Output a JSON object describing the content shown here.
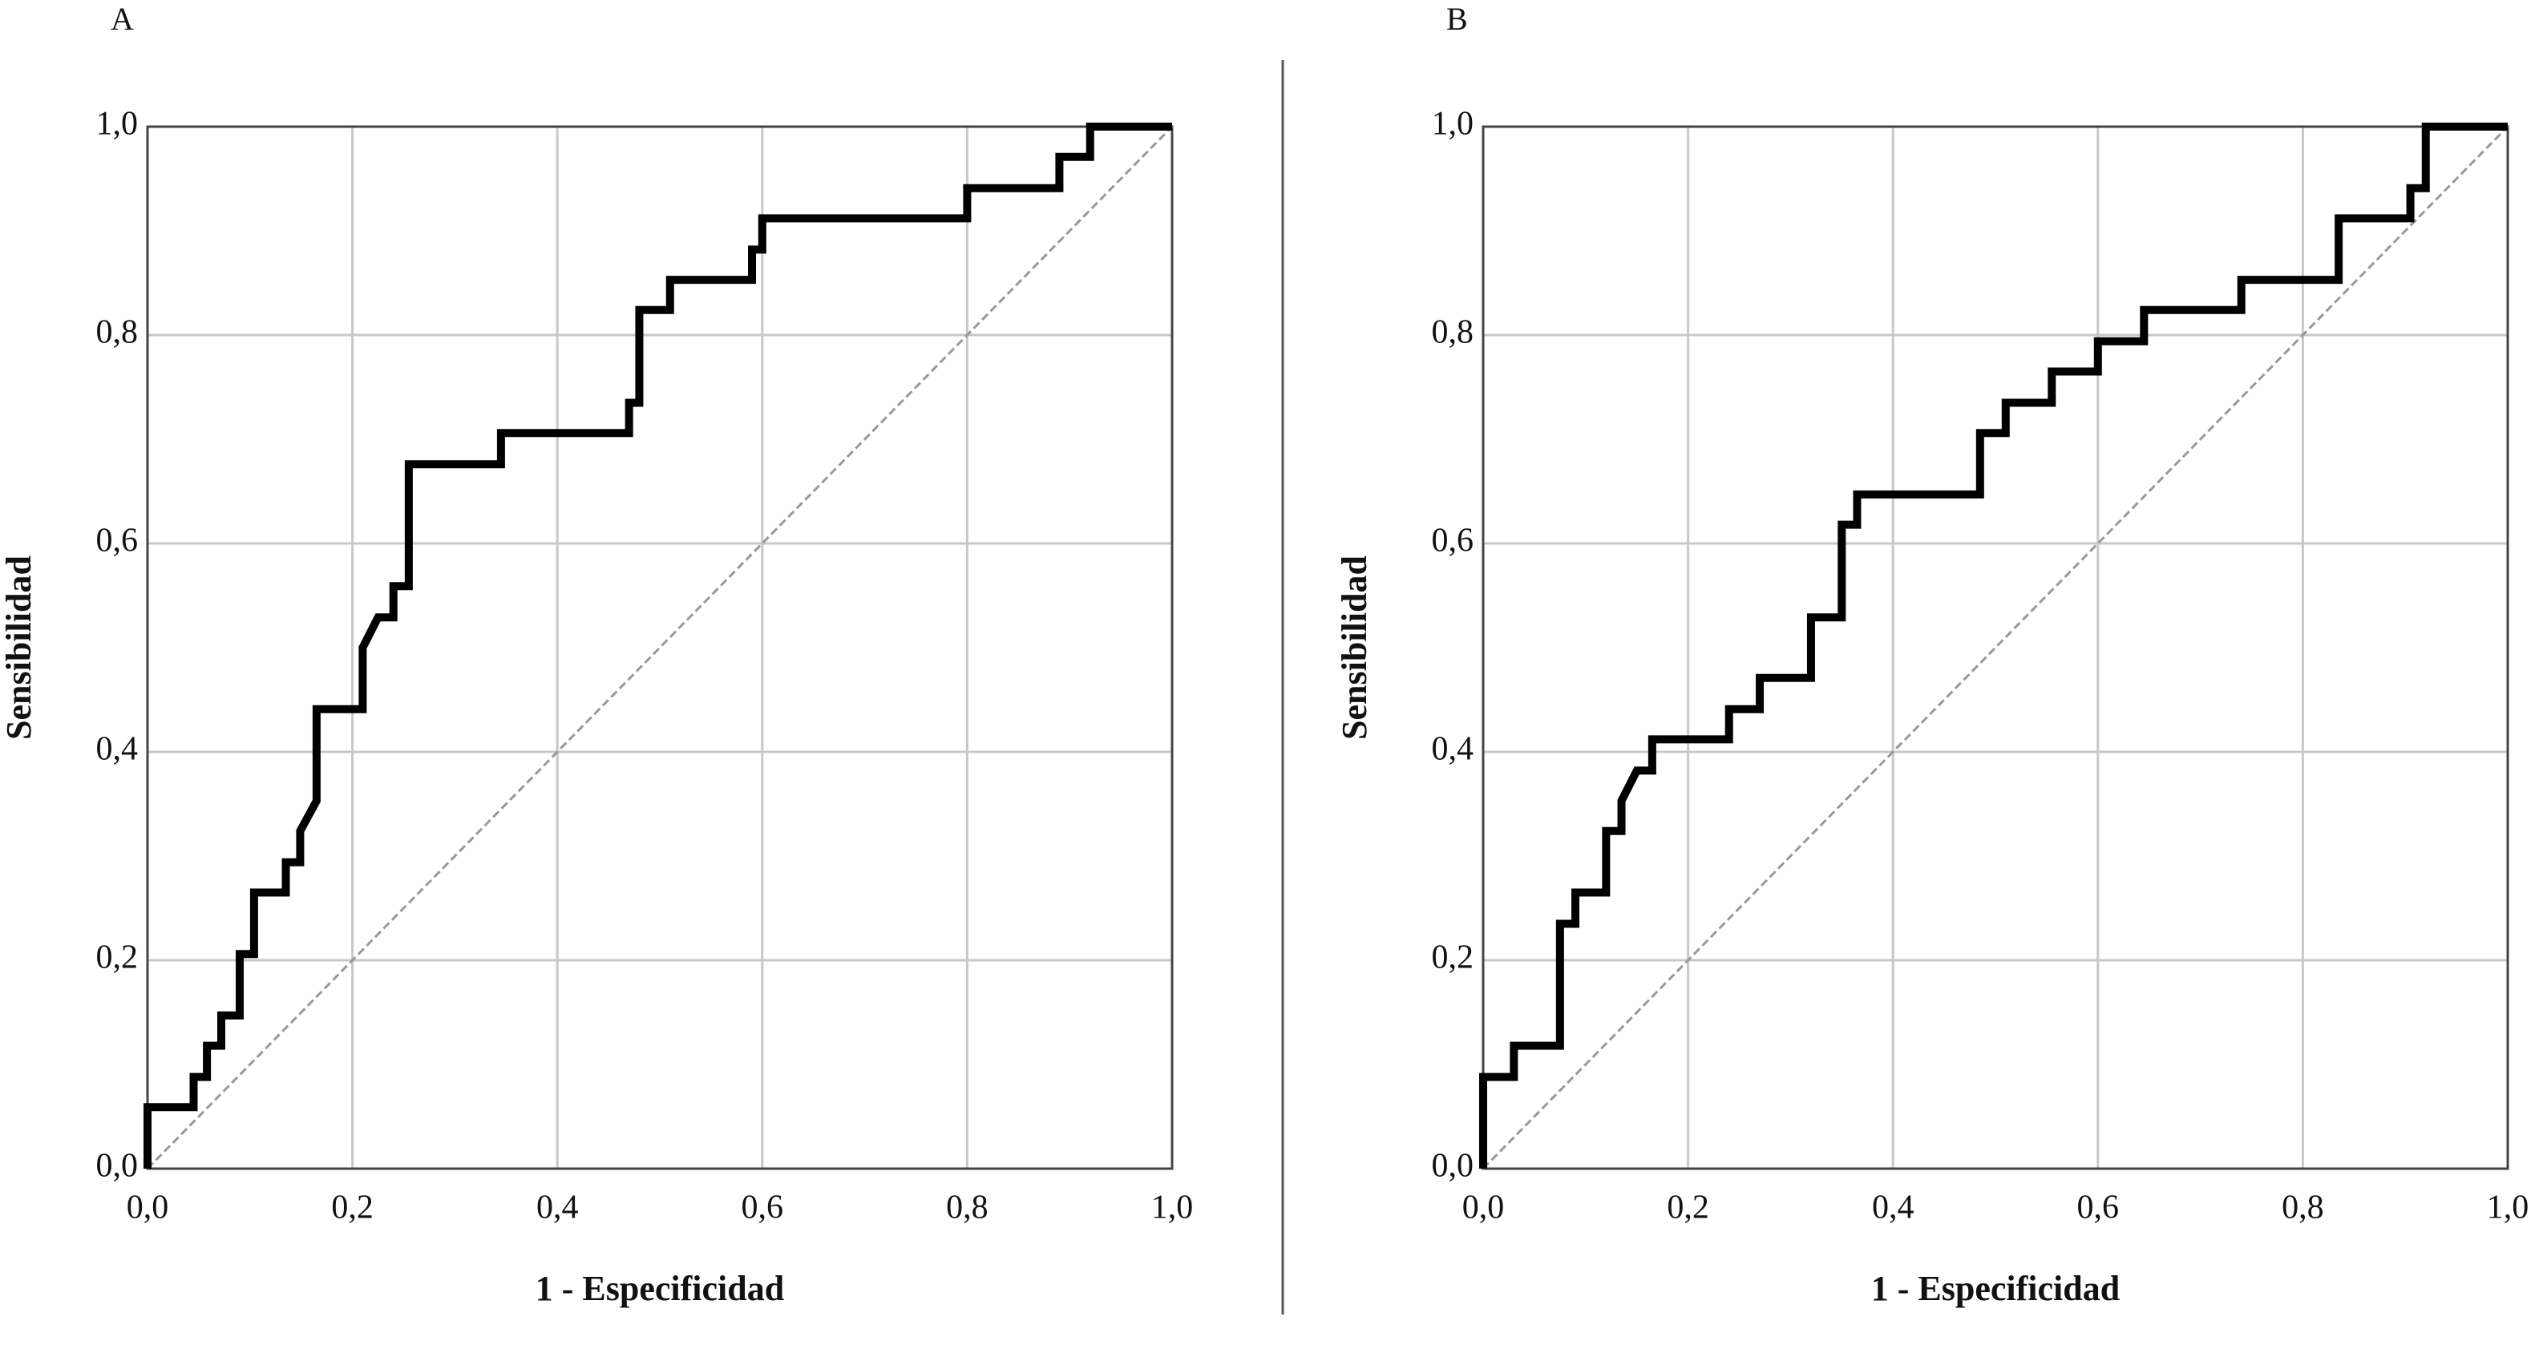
{
  "chart_data": [
    {
      "type": "line",
      "title": "A",
      "x_label": "1 - Especificidad",
      "y_label": "Sensibilidad",
      "xlim": [
        0,
        1
      ],
      "ylim": [
        0,
        1
      ],
      "grid": true,
      "color": "#000000",
      "xticks": [
        {
          "value": 0,
          "label": "0,0"
        },
        {
          "value": 0.2,
          "label": "0,2"
        },
        {
          "value": 0.4,
          "label": "0,4"
        },
        {
          "value": 0.6,
          "label": "0,6"
        },
        {
          "value": 0.8,
          "label": "0,8"
        },
        {
          "value": 1,
          "label": "1,0"
        }
      ],
      "yticks": [
        {
          "value": 0,
          "label": "0,0"
        },
        {
          "value": 0.2,
          "label": "0,2"
        },
        {
          "value": 0.4,
          "label": "0,4"
        },
        {
          "value": 0.6,
          "label": "0,6"
        },
        {
          "value": 0.8,
          "label": "0,8"
        },
        {
          "value": 1,
          "label": "1,0"
        }
      ],
      "x": [
        0,
        0,
        0.045,
        0.045,
        0.058,
        0.058,
        0.072,
        0.072,
        0.09,
        0.09,
        0.104,
        0.104,
        0.135,
        0.135,
        0.149,
        0.149,
        0.165,
        0.165,
        0.21,
        0.21,
        0.225,
        0.24,
        0.24,
        0.255,
        0.255,
        0.345,
        0.345,
        0.47,
        0.47,
        0.48,
        0.48,
        0.51,
        0.51,
        0.59,
        0.59,
        0.6,
        0.6,
        0.8,
        0.8,
        0.89,
        0.89,
        0.92,
        0.92,
        1
      ],
      "values": [
        0,
        0.059,
        0.059,
        0.088,
        0.088,
        0.118,
        0.118,
        0.147,
        0.147,
        0.206,
        0.206,
        0.265,
        0.265,
        0.294,
        0.294,
        0.324,
        0.353,
        0.441,
        0.441,
        0.5,
        0.529,
        0.529,
        0.559,
        0.559,
        0.676,
        0.676,
        0.706,
        0.706,
        0.735,
        0.735,
        0.824,
        0.824,
        0.853,
        0.853,
        0.882,
        0.882,
        0.912,
        0.912,
        0.941,
        0.941,
        0.971,
        0.971,
        1,
        1
      ]
    },
    {
      "type": "line",
      "title": "B",
      "x_label": "1 - Especificidad",
      "y_label": "Sensibilidad",
      "xlim": [
        0,
        1
      ],
      "ylim": [
        0,
        1
      ],
      "grid": true,
      "color": "#000000",
      "xticks": [
        {
          "value": 0,
          "label": "0,0"
        },
        {
          "value": 0.2,
          "label": "0,2"
        },
        {
          "value": 0.4,
          "label": "0,4"
        },
        {
          "value": 0.6,
          "label": "0,6"
        },
        {
          "value": 0.8,
          "label": "0,8"
        },
        {
          "value": 1,
          "label": "1,0"
        }
      ],
      "yticks": [
        {
          "value": 0,
          "label": "0,0"
        },
        {
          "value": 0.2,
          "label": "0,2"
        },
        {
          "value": 0.4,
          "label": "0,4"
        },
        {
          "value": 0.6,
          "label": "0,6"
        },
        {
          "value": 0.8,
          "label": "0,8"
        },
        {
          "value": 1,
          "label": "1,0"
        }
      ],
      "x": [
        0,
        0,
        0.03,
        0.03,
        0.075,
        0.075,
        0.09,
        0.09,
        0.12,
        0.12,
        0.135,
        0.135,
        0.15,
        0.165,
        0.165,
        0.24,
        0.24,
        0.27,
        0.27,
        0.32,
        0.32,
        0.35,
        0.35,
        0.365,
        0.365,
        0.485,
        0.485,
        0.51,
        0.51,
        0.555,
        0.555,
        0.6,
        0.6,
        0.645,
        0.645,
        0.74,
        0.74,
        0.835,
        0.835,
        0.905,
        0.905,
        0.92,
        0.92,
        1
      ],
      "values": [
        0,
        0.088,
        0.088,
        0.118,
        0.118,
        0.235,
        0.235,
        0.265,
        0.265,
        0.324,
        0.324,
        0.353,
        0.382,
        0.382,
        0.412,
        0.412,
        0.441,
        0.441,
        0.471,
        0.471,
        0.529,
        0.529,
        0.618,
        0.618,
        0.647,
        0.647,
        0.706,
        0.706,
        0.735,
        0.735,
        0.765,
        0.765,
        0.794,
        0.794,
        0.824,
        0.824,
        0.853,
        0.853,
        0.912,
        0.912,
        0.941,
        0.941,
        1,
        1
      ]
    }
  ]
}
